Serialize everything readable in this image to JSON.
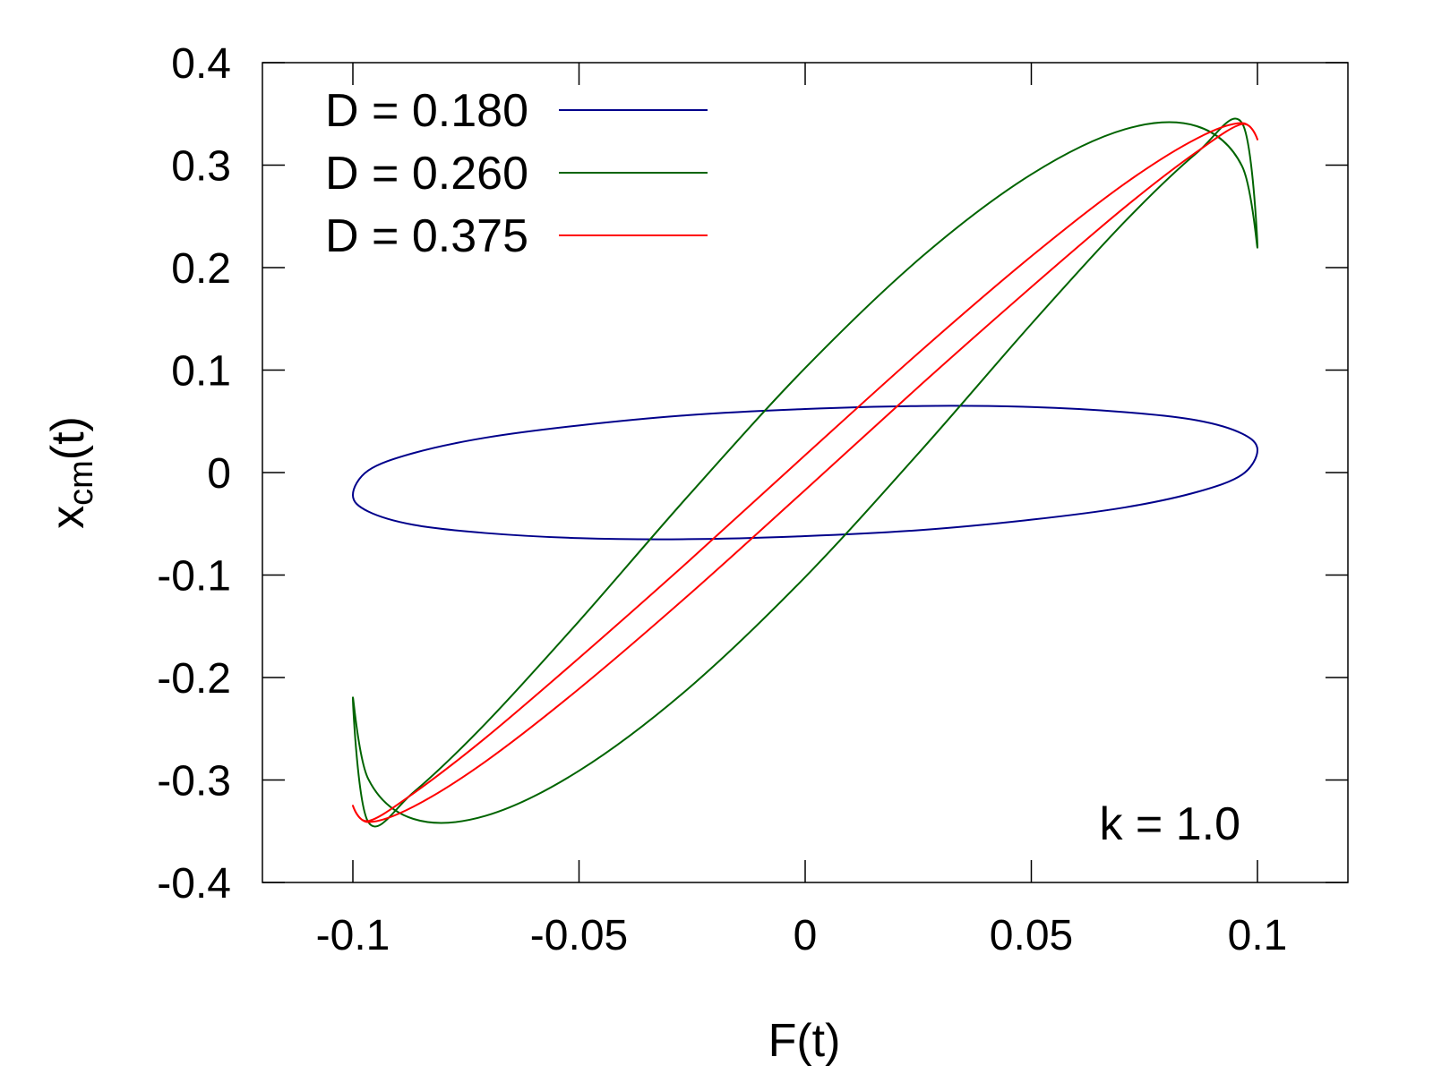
{
  "chart_data": {
    "type": "line",
    "title": "",
    "xlabel": "F(t)",
    "ylabel": {
      "main": "x",
      "sub": "cm",
      "suffix": "(t)"
    },
    "xlim": [
      -0.12,
      0.12
    ],
    "ylim": [
      -0.4,
      0.4
    ],
    "xticks": [
      -0.1,
      -0.05,
      0,
      0.05,
      0.1
    ],
    "xtick_labels": [
      "-0.1",
      "-0.05",
      "0",
      "0.05",
      "0.1"
    ],
    "yticks": [
      0.4,
      0.3,
      0.2,
      0.1,
      0,
      -0.1,
      -0.2,
      -0.3,
      -0.4
    ],
    "ytick_labels": [
      "0.4",
      "0.3",
      "0.2",
      "0.1",
      "0",
      "-0.1",
      "-0.2",
      "-0.3",
      "-0.4"
    ],
    "grid": false,
    "legend_position": "top-left",
    "annotation": "k = 1.0",
    "series": [
      {
        "name": "D = 0.180",
        "color": "#00008b",
        "x": [
          0.1,
          0.0966,
          0.0866,
          0.0707,
          0.05,
          0.0259,
          0.0,
          -0.0259,
          -0.05,
          -0.0707,
          -0.0866,
          -0.0966,
          -0.1,
          -0.0966,
          -0.0866,
          -0.0707,
          -0.05,
          -0.0259,
          0.0,
          0.0259,
          0.05,
          0.0707,
          0.0866,
          0.0966,
          0.1
        ],
        "y": [
          0.022,
          0.038,
          0.051,
          0.059,
          0.064,
          0.065,
          0.062,
          0.056,
          0.046,
          0.034,
          0.019,
          0.002,
          -0.022,
          -0.038,
          -0.051,
          -0.059,
          -0.064,
          -0.065,
          -0.062,
          -0.056,
          -0.046,
          -0.034,
          -0.019,
          -0.002,
          0.022
        ]
      },
      {
        "name": "D = 0.260",
        "color": "#006400",
        "x": [
          0.1,
          0.0966,
          0.0866,
          0.0707,
          0.05,
          0.0259,
          0.0,
          -0.0259,
          -0.05,
          -0.0707,
          -0.0866,
          -0.0966,
          -0.1,
          -0.0966,
          -0.0866,
          -0.0707,
          -0.05,
          -0.0259,
          0.0,
          0.0259,
          0.05,
          0.0707,
          0.0866,
          0.0966,
          0.1
        ],
        "y": [
          0.22,
          0.299,
          0.338,
          0.335,
          0.291,
          0.211,
          0.102,
          -0.023,
          -0.145,
          -0.245,
          -0.312,
          -0.341,
          -0.22,
          -0.299,
          -0.338,
          -0.335,
          -0.291,
          -0.211,
          -0.102,
          0.023,
          0.145,
          0.245,
          0.312,
          0.341,
          0.22
        ]
      },
      {
        "name": "D = 0.375",
        "color": "#ff0000",
        "x": [
          0.1,
          0.0966,
          0.0866,
          0.0707,
          0.05,
          0.0259,
          0.0,
          -0.0259,
          -0.05,
          -0.0707,
          -0.0866,
          -0.0966,
          -0.1,
          -0.0966,
          -0.0866,
          -0.0707,
          -0.05,
          -0.0259,
          0.0,
          0.0259,
          0.05,
          0.0707,
          0.0866,
          0.0966,
          0.1
        ],
        "y": [
          0.325,
          0.341,
          0.326,
          0.282,
          0.211,
          0.12,
          0.017,
          -0.087,
          -0.181,
          -0.259,
          -0.313,
          -0.34,
          -0.325,
          -0.341,
          -0.326,
          -0.282,
          -0.211,
          -0.12,
          -0.017,
          0.087,
          0.181,
          0.259,
          0.313,
          0.34,
          0.325
        ]
      }
    ]
  }
}
